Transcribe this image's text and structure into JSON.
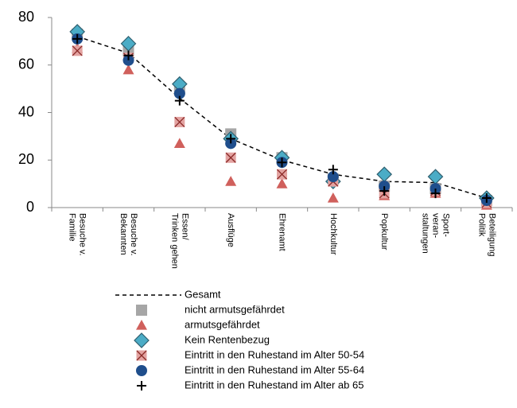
{
  "chart_data": {
    "type": "line",
    "categories": [
      "Besuche v.\nFamilie",
      "Besuche v.\nBekannten",
      "Essen/\nTrinken gehen",
      "Ausflüge",
      "Ehrenamt",
      "Hochkultur",
      "Popkultur",
      "Sport-\nveran-\nstaltungen",
      "Beteiligung\nPolitik"
    ],
    "ylim": [
      0,
      80
    ],
    "yticks": [
      0,
      20,
      40,
      60,
      80
    ],
    "series": [
      {
        "name": "Gesamt",
        "color": "#000000",
        "marker": "dashed-line",
        "values": [
          72,
          65,
          46,
          29,
          20,
          14,
          11,
          10.5,
          4
        ]
      },
      {
        "name": "nicht armutsgefährdet",
        "color": "#a6a6a6",
        "marker": "square",
        "values": [
          73,
          66,
          50,
          31,
          21,
          12,
          9,
          8,
          3
        ]
      },
      {
        "name": "armutsgefährdet",
        "color": "#d0605c",
        "marker": "triangle",
        "values": [
          67,
          58,
          27,
          11,
          10,
          4,
          5,
          6,
          1
        ]
      },
      {
        "name": "Kein Rentenbezug",
        "color": "#4bacc6",
        "marker": "diamond",
        "values": [
          74,
          69,
          52,
          29,
          21,
          11,
          14,
          13,
          4
        ]
      },
      {
        "name": "Eintritt in den Ruhestand im Alter 50-54",
        "color": "#e3a3a1",
        "marker": "xsquare",
        "values": [
          66,
          63,
          36,
          21,
          14,
          11,
          6,
          7,
          2
        ]
      },
      {
        "name": "Eintritt in den Ruhestand im Alter 55-64",
        "color": "#1f4e8c",
        "marker": "circle",
        "values": [
          71,
          62,
          48,
          27,
          19,
          13,
          9,
          8,
          3
        ]
      },
      {
        "name": "Eintritt in den Ruhestand im Alter ab 65",
        "color": "#000000",
        "marker": "plus",
        "values": [
          71,
          64,
          45,
          29,
          19,
          16,
          7,
          6,
          4
        ]
      }
    ]
  }
}
